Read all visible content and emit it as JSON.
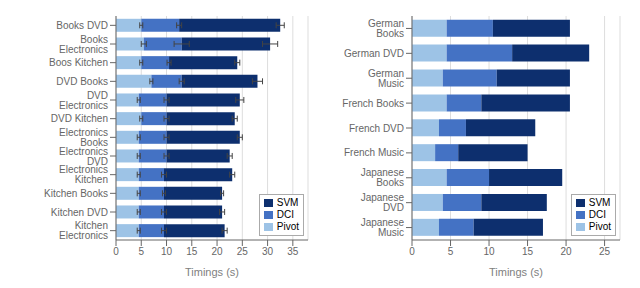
{
  "chart_data": [
    {
      "type": "bar",
      "orientation": "horizontal",
      "stacked": true,
      "grid": true,
      "legend": "lower right",
      "xlabel": "Timings (s)",
      "categories": [
        "Books DVD",
        "Books Electronics",
        "Boos Kitchen",
        "DVD Books",
        "DVD Electronics",
        "DVD Kitchen",
        "Electronics Books",
        "Electronics DVD",
        "Electronics Kitchen",
        "Kitchen Books",
        "Kitchen DVD",
        "Kitchen Electronics"
      ],
      "series": [
        {
          "name": "SVM",
          "color": "#0d2f6e",
          "values": [
            20.0,
            17.5,
            13.5,
            15.0,
            14.5,
            13.5,
            14.5,
            12.5,
            13.5,
            11.5,
            11.5,
            12.0
          ],
          "errors": [
            0.8,
            1.5,
            0.5,
            1.0,
            0.8,
            0.5,
            0.5,
            0.5,
            0.5,
            0.3,
            0.5,
            0.5
          ]
        },
        {
          "name": "DCI",
          "color": "#4472c4",
          "values": [
            7.5,
            7.5,
            5.5,
            6.0,
            5.5,
            5.0,
            5.5,
            5.5,
            5.0,
            5.0,
            5.0,
            5.0
          ],
          "errors": [
            0.5,
            1.5,
            0.4,
            0.5,
            0.5,
            0.5,
            0.5,
            0.5,
            0.5,
            0.3,
            0.5,
            0.5
          ]
        },
        {
          "name": "Pivot",
          "color": "#9dc3e6",
          "values": [
            5.0,
            5.5,
            5.0,
            7.0,
            4.5,
            5.0,
            4.5,
            4.5,
            4.5,
            4.5,
            4.5,
            4.5
          ],
          "errors": [
            0.3,
            0.5,
            0.3,
            0.3,
            0.3,
            0.3,
            0.3,
            0.3,
            0.3,
            0.3,
            0.3,
            0.3
          ]
        }
      ],
      "xlim": [
        0,
        38
      ],
      "xticks": [
        0,
        5,
        10,
        15,
        20,
        25,
        30,
        35
      ]
    },
    {
      "type": "bar",
      "orientation": "horizontal",
      "stacked": true,
      "grid": true,
      "legend": "lower right",
      "xlabel": "Timings (s)",
      "categories": [
        "German Books",
        "German DVD",
        "German Music",
        "French Books",
        "French DVD",
        "French Music",
        "Japanese Books",
        "Japanese DVD",
        "Japanese Music"
      ],
      "series": [
        {
          "name": "SVM",
          "color": "#0d2f6e",
          "values": [
            10.0,
            10.0,
            9.5,
            11.5,
            9.0,
            9.0,
            9.5,
            8.5,
            9.0
          ]
        },
        {
          "name": "DCI",
          "color": "#4472c4",
          "values": [
            6.0,
            8.5,
            7.0,
            4.5,
            3.5,
            3.0,
            5.5,
            5.0,
            4.5
          ]
        },
        {
          "name": "Pivot",
          "color": "#9dc3e6",
          "values": [
            4.5,
            4.5,
            4.0,
            4.5,
            3.5,
            3.0,
            4.5,
            4.0,
            3.5
          ]
        }
      ],
      "xlim": [
        0,
        27
      ],
      "xticks": [
        0,
        5,
        10,
        15,
        20,
        25
      ]
    }
  ]
}
